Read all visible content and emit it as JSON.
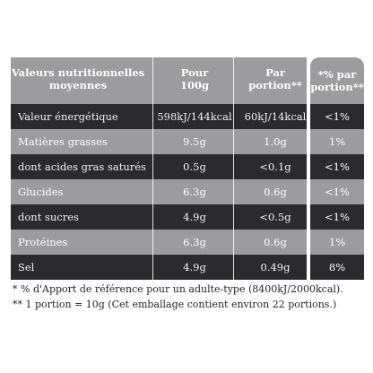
{
  "header": {
    "col_name": "Valeurs nutritionnelles moyennes",
    "col_name_line1": "Valeurs nutritionnelles",
    "col_name_line2": "moyennes",
    "col_100_line1": "Pour",
    "col_100_line2": "100g",
    "col_portion_line1": "Par",
    "col_portion_line2": "portion**",
    "col_pct_line1": "*% par",
    "col_pct_line2": "portion**"
  },
  "rows": [
    {
      "name": "Valeur énergétique",
      "per100": "598kJ/144kcal",
      "portion": "60kJ/14kcal",
      "pct": "<1%"
    },
    {
      "name": "Matières grasses",
      "per100": "9.5g",
      "portion": "1.0g",
      "pct": "1%"
    },
    {
      "name": "dont acides gras saturés",
      "per100": "0.5g",
      "portion": "<0.1g",
      "pct": "<1%"
    },
    {
      "name": "Glucides",
      "per100": "6.3g",
      "portion": "0.6g",
      "pct": "<1%"
    },
    {
      "name": "dont sucres",
      "per100": "4.9g",
      "portion": "<0.5g",
      "pct": "<1%"
    },
    {
      "name": "Protéines",
      "per100": "6.3g",
      "portion": "0.6g",
      "pct": "1%"
    },
    {
      "name": "Sel",
      "per100": "4.9g",
      "portion": "0.49g",
      "pct": "8%"
    }
  ],
  "footnotes": {
    "note1": "* % d'Apport de référence pour un adulte-type (8400kJ/2000kcal).",
    "note2": "** 1 portion = 10g (Cet emballage contient environ 22 portions.)"
  },
  "colors": {
    "dark": "#2b2b2d",
    "light": "#9c9c9e"
  }
}
